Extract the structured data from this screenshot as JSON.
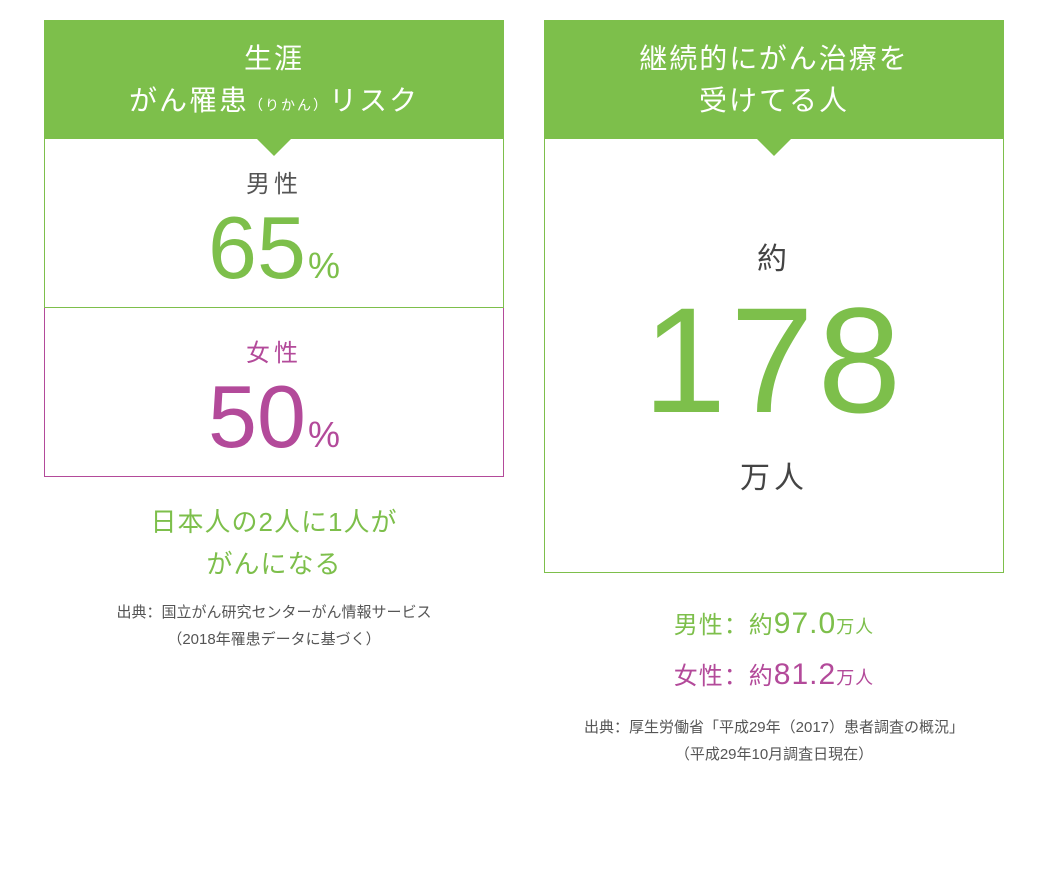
{
  "colors": {
    "green": "#7dbf4b",
    "magenta": "#b34a9a",
    "grey_text": "#555555",
    "background": "#ffffff"
  },
  "left": {
    "header_line1": "生涯",
    "header_line2_a": "がん罹患",
    "header_furigana": "（りかん）",
    "header_line2_b": "リスク",
    "male": {
      "label": "男性",
      "value": "65",
      "unit": "%"
    },
    "female": {
      "label": "女性",
      "value": "50",
      "unit": "%"
    },
    "summary_line1": "日本人の2人に1人が",
    "summary_line2": "がんになる",
    "citation_line1": "出典：国立がん研究センターがん情報サービス",
    "citation_line2": "（2018年罹患データに基づく）"
  },
  "right": {
    "header_line1": "継続的にがん治療を",
    "header_line2": "受けてる人",
    "approx": "約",
    "value": "178",
    "unit": "万人",
    "breakdown": {
      "male_label": "男性：",
      "male_approx": "約",
      "male_value": "97.0",
      "male_unit": "万人",
      "female_label": "女性：",
      "female_approx": "約",
      "female_value": "81.2",
      "female_unit": "万人"
    },
    "citation_line1": "出典：厚生労働省「平成29年（2017）患者調査の概況」",
    "citation_line2": "（平成29年10月調査日現在）"
  }
}
